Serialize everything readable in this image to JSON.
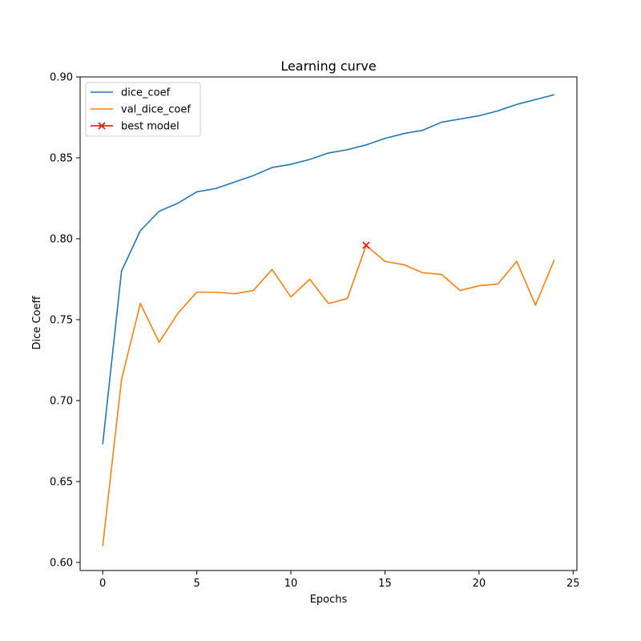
{
  "chart_data": {
    "type": "line",
    "title": "Learning curve",
    "xlabel": "Epochs",
    "ylabel": "Dice Coeff",
    "xlim": [
      -1.2,
      25.2
    ],
    "ylim": [
      0.595,
      0.9
    ],
    "xticks": [
      0,
      5,
      10,
      15,
      20,
      25
    ],
    "yticks": [
      0.6,
      0.65,
      0.7,
      0.75,
      0.8,
      0.85,
      0.9
    ],
    "ytick_labels": [
      "0.60",
      "0.65",
      "0.70",
      "0.75",
      "0.80",
      "0.85",
      "0.90"
    ],
    "grid": false,
    "legend_position": "upper-left",
    "x": [
      0,
      1,
      2,
      3,
      4,
      5,
      6,
      7,
      8,
      9,
      10,
      11,
      12,
      13,
      14,
      15,
      16,
      17,
      18,
      19,
      20,
      21,
      22,
      23,
      24
    ],
    "series": [
      {
        "name": "dice_coef",
        "color": "#1f77b4",
        "values": [
          0.673,
          0.78,
          0.805,
          0.817,
          0.822,
          0.829,
          0.831,
          0.835,
          0.839,
          0.844,
          0.846,
          0.849,
          0.853,
          0.855,
          0.858,
          0.862,
          0.865,
          0.867,
          0.872,
          0.874,
          0.876,
          0.879,
          0.883,
          0.886,
          0.889
        ]
      },
      {
        "name": "val_dice_coef",
        "color": "#ff7f0e",
        "values": [
          0.61,
          0.713,
          0.76,
          0.736,
          0.754,
          0.767,
          0.767,
          0.766,
          0.768,
          0.781,
          0.764,
          0.775,
          0.76,
          0.763,
          0.796,
          0.786,
          0.784,
          0.779,
          0.778,
          0.768,
          0.771,
          0.772,
          0.786,
          0.759,
          0.787
        ]
      }
    ],
    "best_model": {
      "name": "best model",
      "color": "#ff0000",
      "marker": "x",
      "x": 14,
      "y": 0.796
    }
  }
}
